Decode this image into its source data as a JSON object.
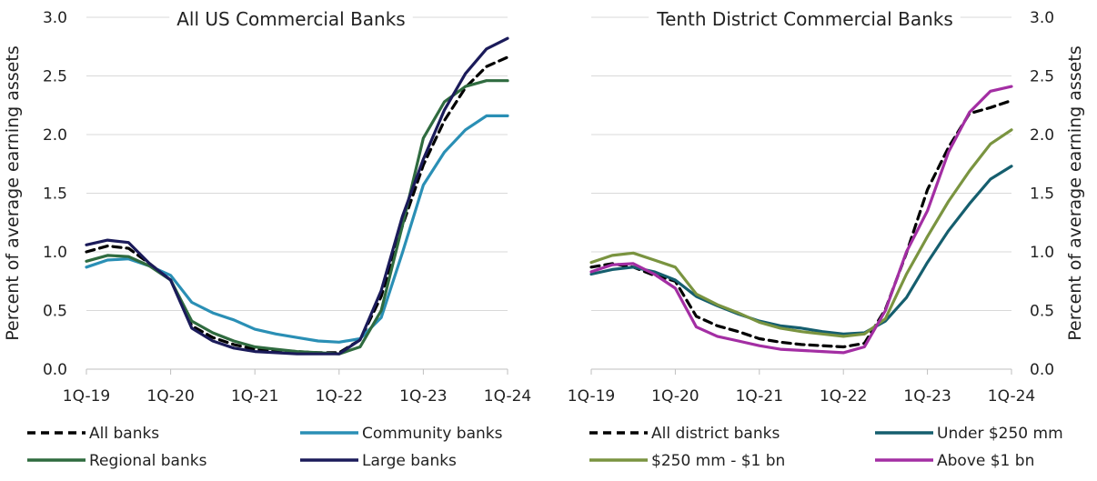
{
  "chart_data": [
    {
      "type": "line",
      "title": "All US Commercial Banks",
      "xlabel": "",
      "ylabel": "Percent of average earning assets",
      "ylim": [
        0,
        3
      ],
      "yticks": [
        "0.0",
        "0.5",
        "1.0",
        "1.5",
        "2.0",
        "2.5",
        "3.0"
      ],
      "xtick_labels": [
        "1Q-19",
        "1Q-20",
        "1Q-21",
        "1Q-22",
        "1Q-23",
        "1Q-24"
      ],
      "x": [
        "1Q-19",
        "2Q-19",
        "3Q-19",
        "4Q-19",
        "1Q-20",
        "2Q-20",
        "3Q-20",
        "4Q-20",
        "1Q-21",
        "2Q-21",
        "3Q-21",
        "4Q-21",
        "1Q-22",
        "2Q-22",
        "3Q-22",
        "4Q-22",
        "1Q-23",
        "2Q-23",
        "3Q-23",
        "4Q-23",
        "1Q-24"
      ],
      "grid": true,
      "legend_position": "bottom",
      "series": [
        {
          "name": "All banks",
          "color": "#000000",
          "dashed": true,
          "values": [
            1.0,
            1.05,
            1.03,
            0.9,
            0.76,
            0.37,
            0.27,
            0.21,
            0.17,
            0.16,
            0.15,
            0.14,
            0.14,
            0.25,
            0.62,
            1.22,
            1.74,
            2.12,
            2.4,
            2.58,
            2.66
          ]
        },
        {
          "name": "Community banks",
          "color": "#2a8fb5",
          "dashed": false,
          "values": [
            0.87,
            0.93,
            0.94,
            0.88,
            0.8,
            0.57,
            0.48,
            0.42,
            0.34,
            0.3,
            0.27,
            0.24,
            0.23,
            0.26,
            0.44,
            0.99,
            1.57,
            1.85,
            2.04,
            2.16,
            2.16
          ]
        },
        {
          "name": "Regional banks",
          "color": "#2f6b3f",
          "dashed": false,
          "values": [
            0.92,
            0.97,
            0.96,
            0.88,
            0.76,
            0.41,
            0.31,
            0.24,
            0.19,
            0.17,
            0.15,
            0.14,
            0.13,
            0.19,
            0.5,
            1.22,
            1.97,
            2.28,
            2.41,
            2.46,
            2.46
          ]
        },
        {
          "name": "Large banks",
          "color": "#1b1b5a",
          "dashed": false,
          "values": [
            1.06,
            1.1,
            1.08,
            0.9,
            0.76,
            0.35,
            0.24,
            0.18,
            0.15,
            0.14,
            0.13,
            0.13,
            0.13,
            0.25,
            0.67,
            1.3,
            1.79,
            2.21,
            2.52,
            2.73,
            2.82
          ]
        }
      ]
    },
    {
      "type": "line",
      "title": "Tenth District Commercial Banks",
      "xlabel": "",
      "ylabel": "Percent of average earning assets",
      "ylim": [
        0,
        3
      ],
      "yticks": [
        "0.0",
        "0.5",
        "1.0",
        "1.5",
        "2.0",
        "2.5",
        "3.0"
      ],
      "xtick_labels": [
        "1Q-19",
        "1Q-20",
        "1Q-21",
        "1Q-22",
        "1Q-23",
        "1Q-24"
      ],
      "x": [
        "1Q-19",
        "2Q-19",
        "3Q-19",
        "4Q-19",
        "1Q-20",
        "2Q-20",
        "3Q-20",
        "4Q-20",
        "1Q-21",
        "2Q-21",
        "3Q-21",
        "4Q-21",
        "1Q-22",
        "2Q-22",
        "3Q-22",
        "4Q-22",
        "1Q-23",
        "2Q-23",
        "3Q-23",
        "4Q-23",
        "1Q-24"
      ],
      "grid": true,
      "legend_position": "bottom",
      "series": [
        {
          "name": "All district banks",
          "color": "#000000",
          "dashed": true,
          "values": [
            0.87,
            0.9,
            0.87,
            0.8,
            0.75,
            0.45,
            0.37,
            0.32,
            0.26,
            0.23,
            0.21,
            0.2,
            0.19,
            0.22,
            0.51,
            0.99,
            1.53,
            1.89,
            2.18,
            2.23,
            2.29
          ]
        },
        {
          "name": "Under $250 mm",
          "color": "#155e6e",
          "dashed": false,
          "values": [
            0.81,
            0.85,
            0.87,
            0.83,
            0.76,
            0.62,
            0.54,
            0.47,
            0.41,
            0.37,
            0.35,
            0.32,
            0.3,
            0.31,
            0.41,
            0.61,
            0.91,
            1.18,
            1.41,
            1.62,
            1.73
          ]
        },
        {
          "name": "$250 mm - $1 bn",
          "color": "#7a9440",
          "dashed": false,
          "values": [
            0.91,
            0.97,
            0.99,
            0.93,
            0.87,
            0.64,
            0.55,
            0.48,
            0.4,
            0.35,
            0.32,
            0.3,
            0.28,
            0.3,
            0.43,
            0.81,
            1.13,
            1.43,
            1.69,
            1.92,
            2.04
          ]
        },
        {
          "name": "Above $1 bn",
          "color": "#a32ea3",
          "dashed": false,
          "values": [
            0.83,
            0.89,
            0.9,
            0.81,
            0.69,
            0.36,
            0.28,
            0.24,
            0.2,
            0.17,
            0.16,
            0.15,
            0.14,
            0.19,
            0.5,
            1.0,
            1.35,
            1.85,
            2.19,
            2.37,
            2.41
          ]
        }
      ]
    }
  ]
}
